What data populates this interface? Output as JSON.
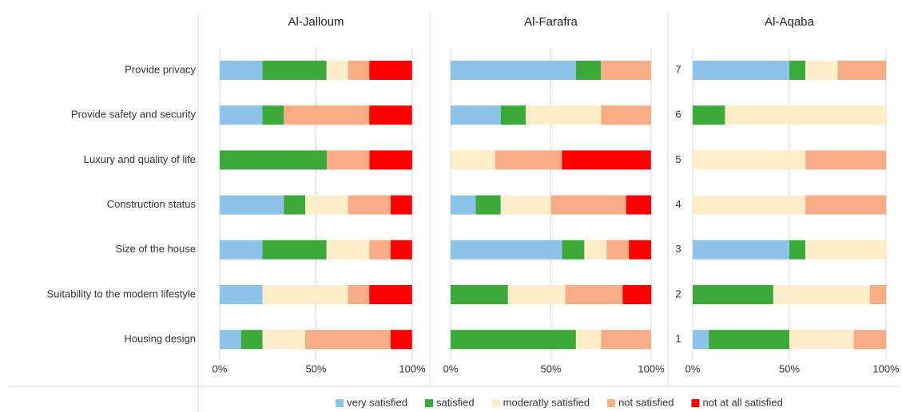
{
  "chart_data": [
    {
      "type": "bar",
      "orientation": "horizontal",
      "stacked": true,
      "title": "Al-Jalloum",
      "categories": [
        "Provide privacy",
        "Provide safety and security",
        "Luxury and quality of life",
        "Construction status",
        "Size of the house",
        "Suitability to the modern lifestyle",
        "Housing design"
      ],
      "series": [
        {
          "name": "very satisfied",
          "color": "#8dc3e8",
          "values": [
            22.2,
            22.2,
            0,
            33.3,
            22.2,
            22.2,
            11.1
          ]
        },
        {
          "name": "satisfied",
          "color": "#3caa3a",
          "values": [
            33.3,
            11.1,
            55.6,
            11.1,
            33.3,
            0,
            11.1
          ]
        },
        {
          "name": "moderatly satisfied",
          "color": "#fdedcb",
          "values": [
            11.1,
            0,
            0,
            22.2,
            22.2,
            44.4,
            22.2
          ]
        },
        {
          "name": "not satisfied",
          "color": "#f9ad86",
          "values": [
            11.1,
            44.4,
            22.2,
            22.2,
            11.1,
            11.1,
            44.4
          ]
        },
        {
          "name": "not at all satisfied",
          "color": "#ff0000",
          "values": [
            22.2,
            22.2,
            22.2,
            11.1,
            11.1,
            22.2,
            11.1
          ]
        }
      ],
      "xlim": [
        0,
        100
      ],
      "xticks": [
        {
          "value": 0,
          "label": "0%"
        },
        {
          "value": 50,
          "label": "50%"
        },
        {
          "value": 100,
          "label": "100%"
        }
      ],
      "grid": true
    },
    {
      "type": "bar",
      "orientation": "horizontal",
      "stacked": true,
      "title": "Al-Farafra",
      "series": [
        {
          "values": [
            62.5,
            25,
            0,
            12.5,
            55.6,
            0,
            0
          ]
        },
        {
          "values": [
            12.5,
            12.5,
            0,
            12.5,
            11.1,
            28.6,
            62.5
          ]
        },
        {
          "values": [
            0,
            37.5,
            22.2,
            25,
            11.1,
            28.6,
            12.5
          ]
        },
        {
          "values": [
            25,
            25,
            33.3,
            37.5,
            11.1,
            28.6,
            25
          ]
        },
        {
          "values": [
            0,
            0,
            44.4,
            12.5,
            11.1,
            14.3,
            0
          ]
        }
      ],
      "xlim": [
        0,
        100
      ],
      "xticks": [
        {
          "value": 0,
          "label": "0%"
        },
        {
          "value": 50,
          "label": "50%"
        },
        {
          "value": 100,
          "label": "100%"
        }
      ],
      "grid": true
    },
    {
      "type": "bar",
      "orientation": "horizontal",
      "stacked": true,
      "title": "Al-Aqaba",
      "categories": [
        "7",
        "6",
        "5",
        "4",
        "3",
        "2",
        "1"
      ],
      "series": [
        {
          "values": [
            50,
            0,
            0,
            0,
            50,
            0,
            8.3
          ]
        },
        {
          "values": [
            8.3,
            16.7,
            0,
            0,
            8.3,
            41.7,
            41.7
          ]
        },
        {
          "values": [
            16.7,
            83.3,
            58.3,
            58.3,
            41.7,
            50,
            33.3
          ]
        },
        {
          "values": [
            25,
            0,
            41.7,
            41.7,
            0,
            8.3,
            16.7
          ]
        },
        {
          "values": [
            0,
            0,
            0,
            0,
            0,
            0,
            0
          ]
        }
      ],
      "xlim": [
        0,
        100
      ],
      "xticks": [
        {
          "value": 0,
          "label": "0%"
        },
        {
          "value": 50,
          "label": "50%"
        },
        {
          "value": 100,
          "label": "100%"
        }
      ],
      "grid": true
    }
  ]
}
